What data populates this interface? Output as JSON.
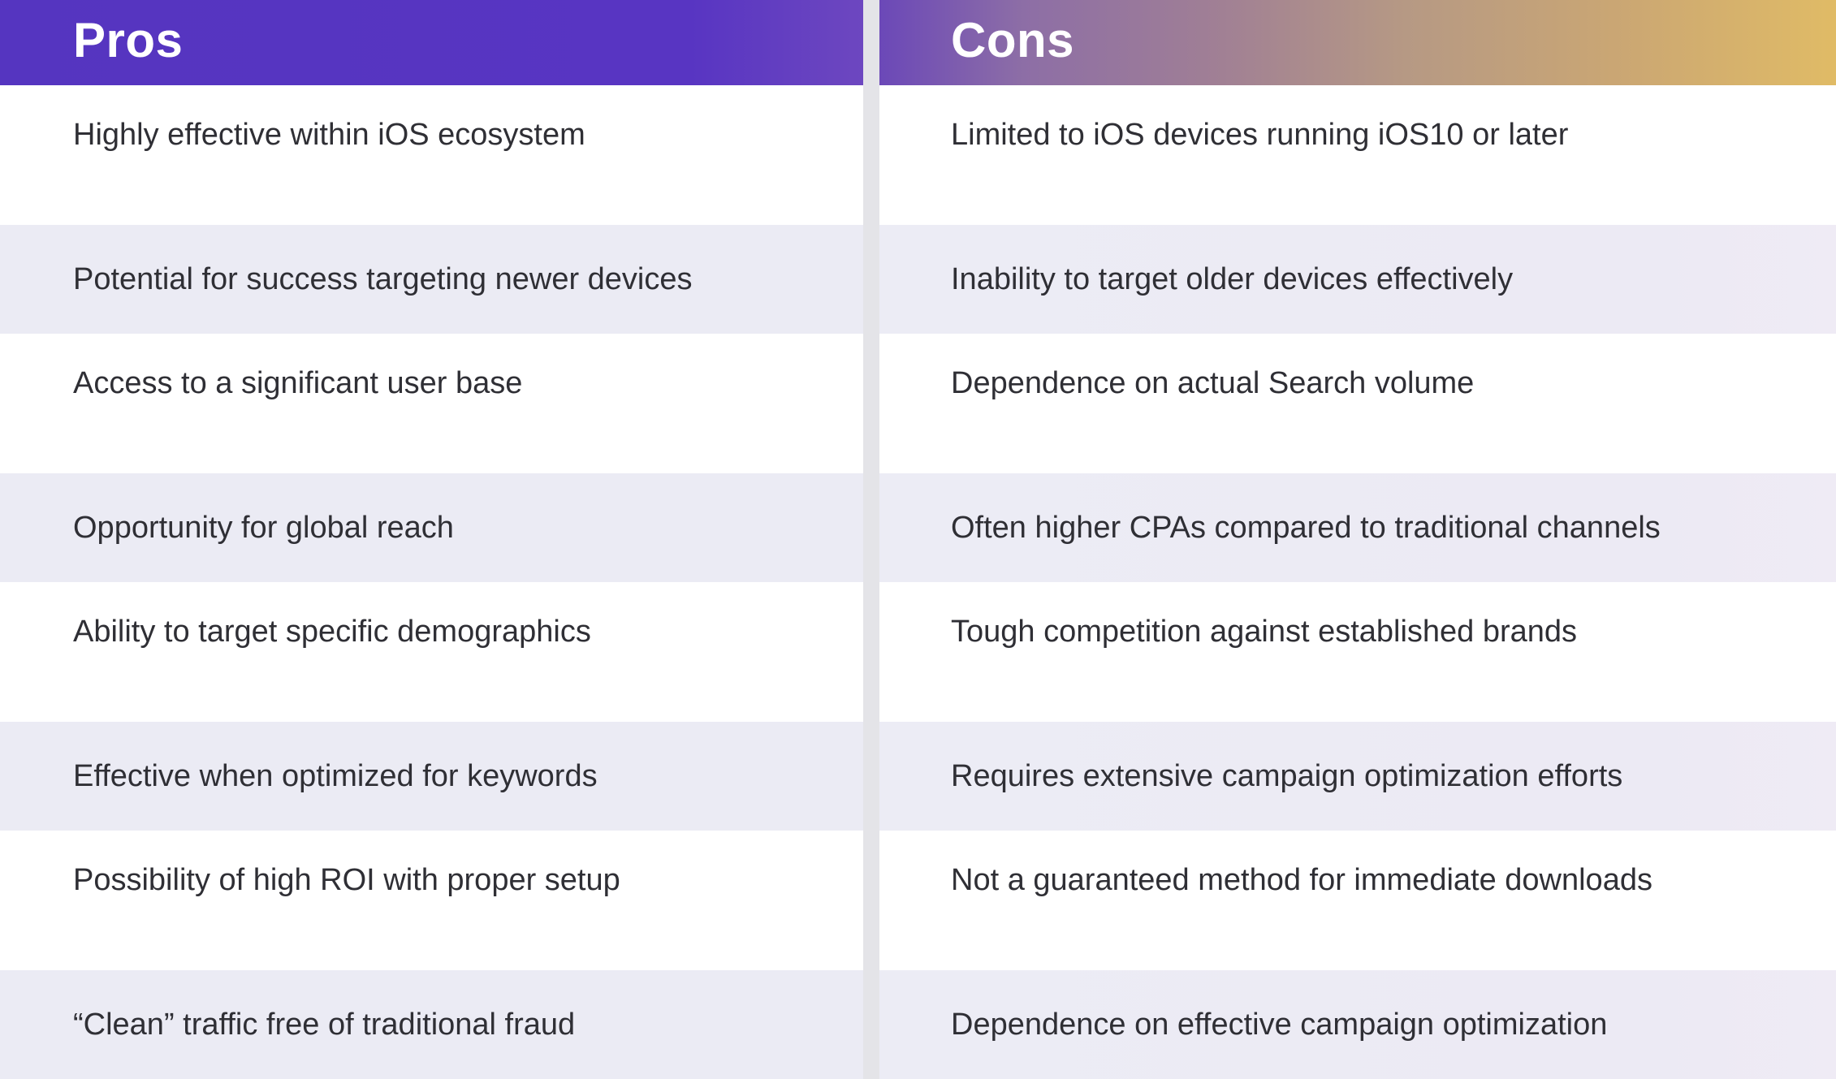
{
  "pros": {
    "title": "Pros",
    "items": [
      "Highly effective within iOS ecosystem",
      "Potential for success targeting newer devices",
      "Access to a significant user base",
      "Opportunity for global reach",
      "Ability to target specific demographics",
      "Effective when optimized for keywords",
      "Possibility of high ROI with proper setup",
      "“Clean” traffic free of traditional fraud"
    ]
  },
  "cons": {
    "title": "Cons",
    "items": [
      "Limited to iOS devices running iOS10 or later",
      "Inability to target older devices effectively",
      "Dependence on actual Search volume",
      "Often higher CPAs compared to traditional channels",
      "Tough competition against established brands",
      "Requires extensive campaign optimization efforts",
      "Not a guaranteed method for immediate downloads",
      "Dependence on effective campaign optimization"
    ]
  },
  "colors": {
    "pros_header": "#5535c0",
    "cons_header_start": "#6b48b8",
    "cons_header_end": "#e0bb66",
    "row_stripe": "#ebebf4",
    "divider": "#e4e4e8"
  }
}
